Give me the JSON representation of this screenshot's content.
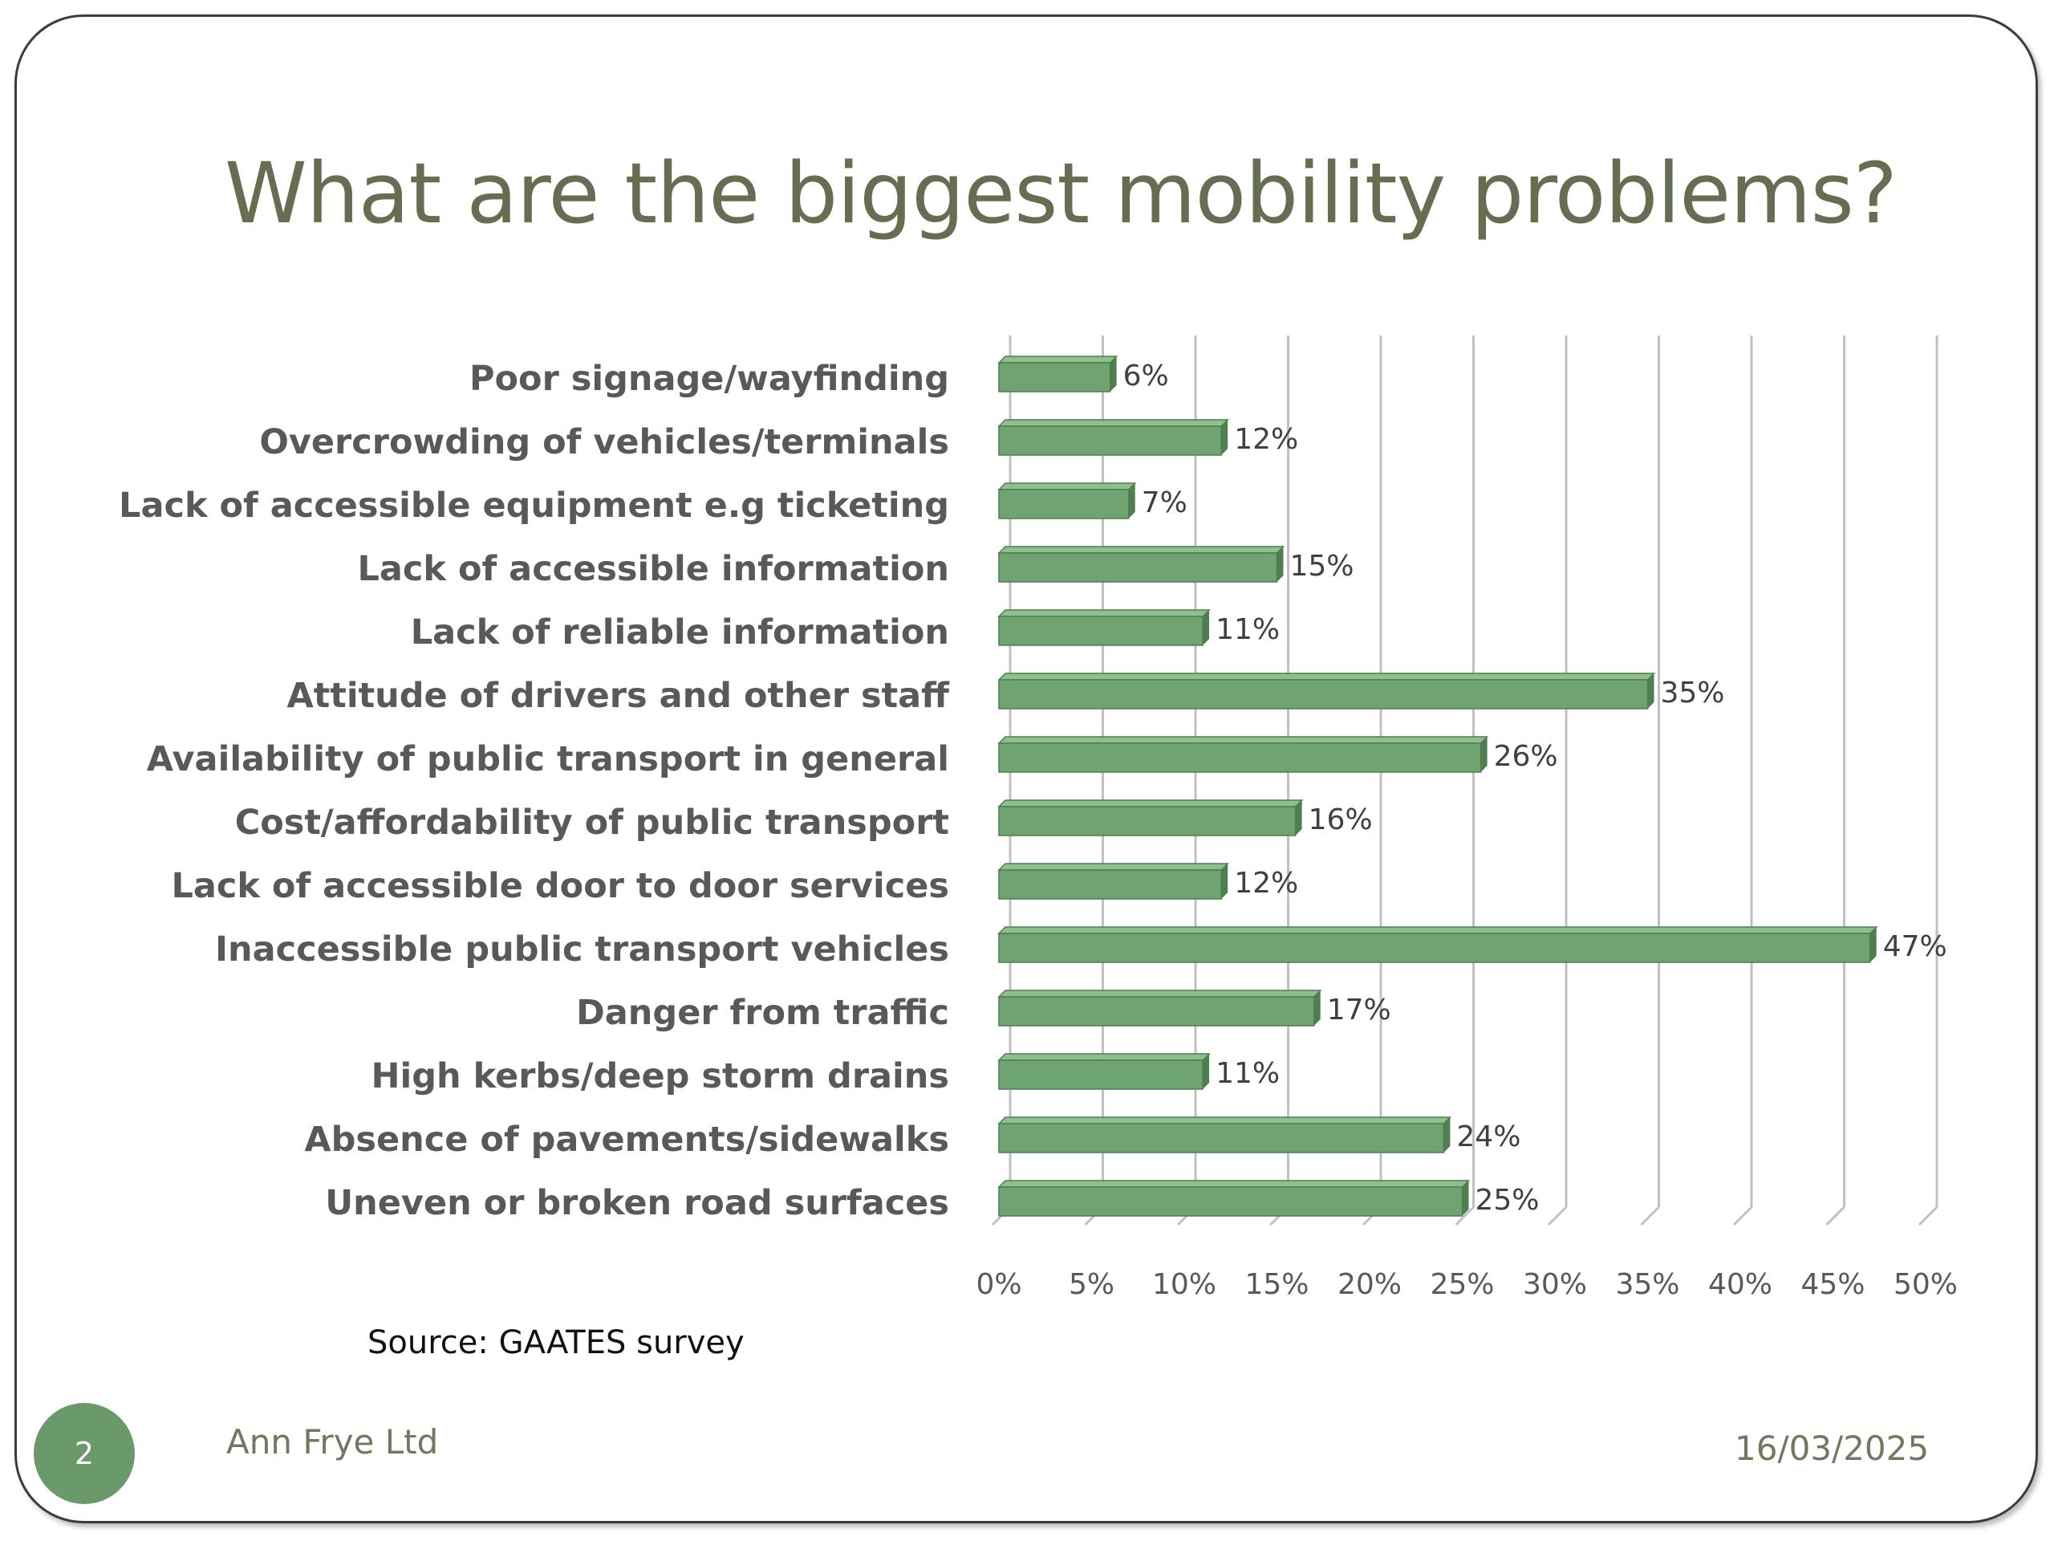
{
  "slide": {
    "title": "What are the biggest mobility problems?",
    "source": "Source: GAATES survey",
    "slide_number": "2",
    "author": "Ann Frye Ltd",
    "date": "16/03/2025"
  },
  "chart_data": {
    "type": "bar",
    "orientation": "horizontal",
    "categories": [
      "Poor signage/wayfinding",
      "Overcrowding of vehicles/terminals",
      "Lack of accessible equipment e.g ticketing",
      "Lack of accessible information",
      "Lack of reliable information",
      "Attitude of drivers and other staff",
      "Availability of public transport in general",
      "Cost/affordability of public transport",
      "Lack of accessible door to door services",
      "Inaccessible public transport vehicles",
      "Danger from traffic",
      "High kerbs/deep storm drains",
      "Absence of pavements/sidewalks",
      "Uneven or broken road surfaces"
    ],
    "values": [
      6,
      12,
      7,
      15,
      11,
      35,
      26,
      16,
      12,
      47,
      17,
      11,
      24,
      25
    ],
    "value_labels": [
      "6%",
      "12%",
      "7%",
      "15%",
      "11%",
      "35%",
      "26%",
      "16%",
      "12%",
      "47%",
      "17%",
      "11%",
      "24%",
      "25%"
    ],
    "xlim": [
      0,
      50
    ],
    "x_ticks": [
      "0%",
      "5%",
      "10%",
      "15%",
      "20%",
      "25%",
      "30%",
      "35%",
      "40%",
      "45%",
      "50%"
    ],
    "grid": true,
    "legend": "none",
    "bar_color": "#6fa372",
    "bar_top_color": "#8fbf8f",
    "bar_side_color": "#4f7f4f",
    "grid_color": "#c0c0c0"
  }
}
